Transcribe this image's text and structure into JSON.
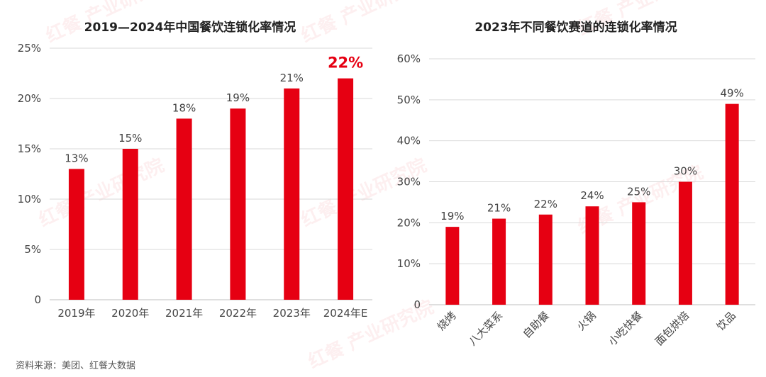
{
  "colors": {
    "bar": "#e60012",
    "highlight_label": "#e60012",
    "grid": "#d9d9d9"
  },
  "watermark": "红餐 产业研究院",
  "source": "资料来源：美团、红餐大数据",
  "chart_data": [
    {
      "type": "bar",
      "title": "2019—2024年中国餐饮连锁化率情况",
      "categories": [
        "2019年",
        "2020年",
        "2021年",
        "2022年",
        "2023年",
        "2024年E"
      ],
      "values": [
        13,
        15,
        18,
        19,
        21,
        22
      ],
      "data_labels": [
        "13%",
        "15%",
        "18%",
        "19%",
        "21%",
        "22%"
      ],
      "highlight_index": 5,
      "ylim": [
        0,
        25
      ],
      "yticks": [
        0,
        5,
        10,
        15,
        20,
        25
      ],
      "ytick_labels": [
        "0",
        "5%",
        "10%",
        "15%",
        "20%",
        "25%"
      ],
      "grid": true
    },
    {
      "type": "bar",
      "title": "2023年不同餐饮赛道的连锁化率情况",
      "categories": [
        "烧烤",
        "八大菜系",
        "自助餐",
        "火锅",
        "小吃快餐",
        "面包烘焙",
        "饮品"
      ],
      "values": [
        19,
        21,
        22,
        24,
        25,
        30,
        49
      ],
      "data_labels": [
        "19%",
        "21%",
        "22%",
        "24%",
        "25%",
        "30%",
        "49%"
      ],
      "ylim": [
        0,
        60
      ],
      "yticks": [
        0,
        10,
        20,
        30,
        40,
        50,
        60
      ],
      "ytick_labels": [
        "0",
        "10%",
        "20%",
        "30%",
        "40%",
        "50%",
        "60%"
      ],
      "grid": true,
      "xtick_rotation": -45
    }
  ]
}
